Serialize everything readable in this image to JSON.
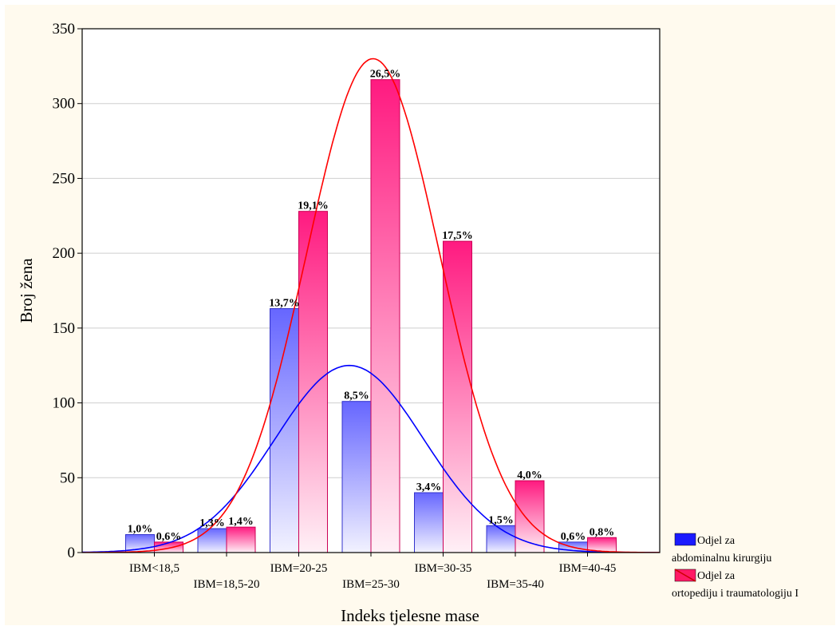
{
  "chart_data": {
    "type": "bar",
    "xlabel": "Indeks tjelesne mase",
    "ylabel": "Broj žena",
    "ylim": [
      0,
      350
    ],
    "yticks": [
      0,
      50,
      100,
      150,
      200,
      250,
      300,
      350
    ],
    "grid": true,
    "legend_position": "bottom-right",
    "categories": [
      "IBM<18,5",
      "IBM=18,5-20",
      "IBM=20-25",
      "IBM=25-30",
      "IBM=30-35",
      "IBM=35-40",
      "IBM=40-45"
    ],
    "series": [
      {
        "name": "Odjel za abdominalnu kirurgiju",
        "legend_lines": [
          "Odjel za",
          "abdominalnu kirurgiju"
        ],
        "color": "#3333ff",
        "values": [
          12,
          16,
          163,
          101,
          40,
          18,
          7
        ],
        "labels": [
          "1,0%",
          "1,3%",
          "13,7%",
          "8,5%",
          "3,4%",
          "1,5%",
          "0,6%"
        ]
      },
      {
        "name": "Odjel za ortopediju i traumatologiju I",
        "legend_lines": [
          "Odjel za",
          "ortopediju i traumatologiju I"
        ],
        "color": "#ff0066",
        "values": [
          7,
          17,
          228,
          316,
          208,
          48,
          10
        ],
        "labels": [
          "0,6%",
          "1,4%",
          "19,1%",
          "26,5%",
          "17,5%",
          "4,0%",
          "0,8%"
        ]
      }
    ],
    "normal_curves": [
      {
        "series": "Odjel za abdominalnu kirurgiju",
        "color": "#0000ff",
        "peak_x": 3.7,
        "peak_y": 125,
        "sigma": 1.03
      },
      {
        "series": "Odjel za ortopediju i traumatologiju I",
        "color": "#ff0000",
        "peak_x": 4.03,
        "peak_y": 330,
        "sigma": 0.92
      }
    ]
  }
}
